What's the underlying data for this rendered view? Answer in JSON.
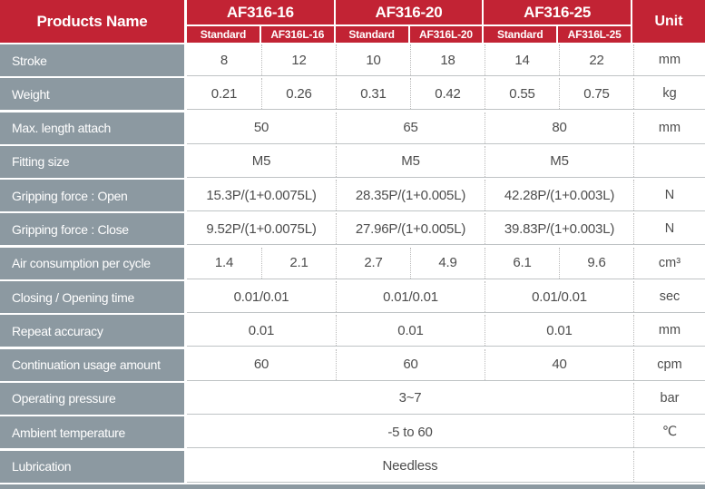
{
  "table": {
    "products_name_label": "Products Name",
    "unit_label": "Unit",
    "product_groups": [
      {
        "name": "AF316-16",
        "sub": [
          "Standard",
          "AF316L-16"
        ]
      },
      {
        "name": "AF316-20",
        "sub": [
          "Standard",
          "AF316L-20"
        ]
      },
      {
        "name": "AF316-25",
        "sub": [
          "Standard",
          "AF316L-25"
        ]
      }
    ],
    "rows": [
      {
        "label": "Stroke",
        "span": 1,
        "cells": [
          "8",
          "12",
          "10",
          "18",
          "14",
          "22"
        ],
        "unit": "mm"
      },
      {
        "label": "Weight",
        "span": 1,
        "cells": [
          "0.21",
          "0.26",
          "0.31",
          "0.42",
          "0.55",
          "0.75"
        ],
        "unit": "kg"
      },
      {
        "label": "Max. length attach",
        "span": 2,
        "cells": [
          "50",
          "65",
          "80"
        ],
        "unit": "mm"
      },
      {
        "label": "Fitting size",
        "span": 2,
        "cells": [
          "M5",
          "M5",
          "M5"
        ],
        "unit": ""
      },
      {
        "label": "Gripping force : Open",
        "span": 2,
        "cells": [
          "15.3P/(1+0.0075L)",
          "28.35P/(1+0.005L)",
          "42.28P/(1+0.003L)"
        ],
        "unit": "N"
      },
      {
        "label": "Gripping force : Close",
        "span": 2,
        "cells": [
          "9.52P/(1+0.0075L)",
          "27.96P/(1+0.005L)",
          "39.83P/(1+0.003L)"
        ],
        "unit": "N"
      },
      {
        "label": "Air consumption per cycle",
        "span": 1,
        "cells": [
          "1.4",
          "2.1",
          "2.7",
          "4.9",
          "6.1",
          "9.6"
        ],
        "unit": "cm³"
      },
      {
        "label": "Closing / Opening time",
        "span": 2,
        "cells": [
          "0.01/0.01",
          "0.01/0.01",
          "0.01/0.01"
        ],
        "unit": "sec"
      },
      {
        "label": "Repeat accuracy",
        "span": 2,
        "cells": [
          "0.01",
          "0.01",
          "0.01"
        ],
        "unit": "mm"
      },
      {
        "label": "Continuation usage amount",
        "span": 2,
        "cells": [
          "60",
          "60",
          "40"
        ],
        "unit": "cpm"
      },
      {
        "label": "Operating pressure",
        "span": 6,
        "cells": [
          "3~7"
        ],
        "unit": "bar"
      },
      {
        "label": "Ambient temperature",
        "span": 6,
        "cells": [
          "-5 to 60"
        ],
        "unit": "℃"
      },
      {
        "label": "Lubrication",
        "span": 6,
        "cells": [
          "Needless"
        ],
        "unit": ""
      }
    ],
    "colors": {
      "header_red": "#C22334",
      "label_grey": "#8C99A1",
      "cell_text": "#4D4D4D",
      "dotted_divider": "#B9B9B9",
      "row_line": "#BFC3C5"
    }
  }
}
